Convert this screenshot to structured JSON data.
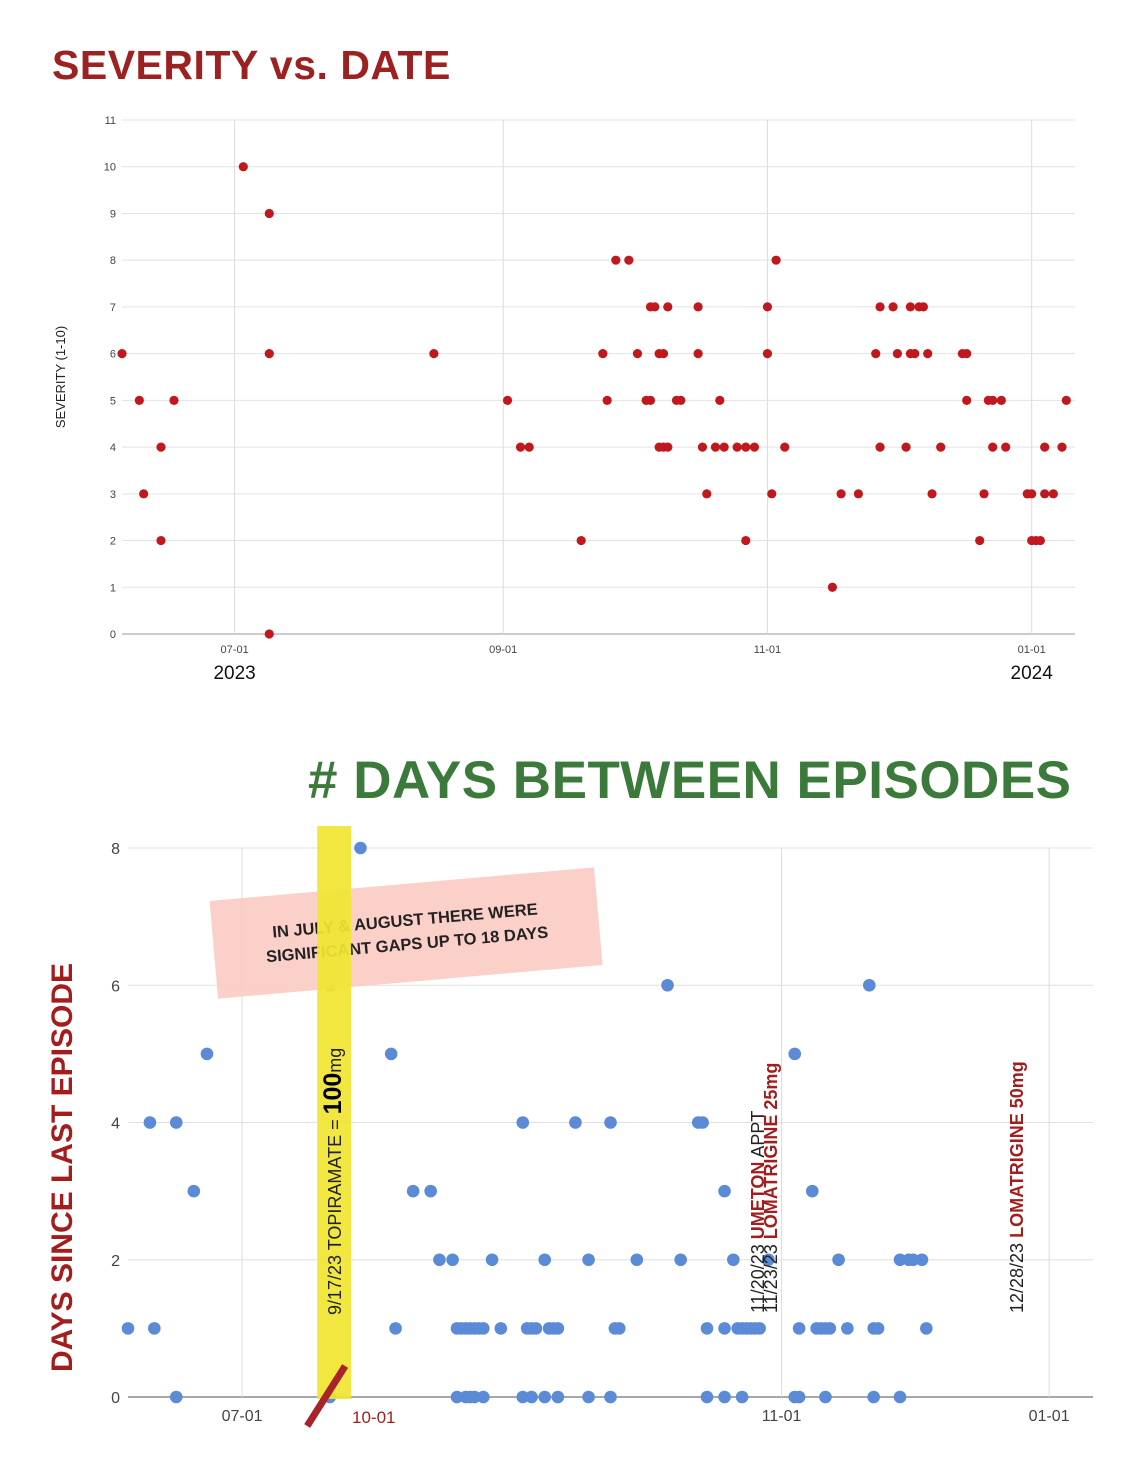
{
  "charts": {
    "severity": {
      "title": "SEVERITY vs. DATE"
    },
    "days": {
      "title": "# DAYS BETWEEN EPISODES"
    }
  },
  "chart_data": [
    {
      "type": "scatter",
      "title": "SEVERITY vs. DATE",
      "ylabel": "SEVERITY (1-10)",
      "xlabel": "",
      "ylim": [
        0,
        11
      ],
      "xlim": [
        "2023-06-05",
        "2024-01-11"
      ],
      "yticks": [
        "0",
        "1",
        "2",
        "3",
        "4",
        "5",
        "6",
        "7",
        "8",
        "9",
        "10",
        "11"
      ],
      "xticks": [
        {
          "date": "2023-07-01",
          "label": "07-01",
          "year": "2023"
        },
        {
          "date": "2023-09-01",
          "label": "09-01",
          "year": ""
        },
        {
          "date": "2023-11-01",
          "label": "11-01",
          "year": ""
        },
        {
          "date": "2024-01-01",
          "label": "01-01",
          "year": "2024"
        }
      ],
      "grid": true,
      "marker_color": "#c0181d",
      "points": [
        [
          "2023-06-05",
          6
        ],
        [
          "2023-06-09",
          5
        ],
        [
          "2023-06-10",
          3
        ],
        [
          "2023-06-14",
          2
        ],
        [
          "2023-06-14",
          4
        ],
        [
          "2023-06-17",
          5
        ],
        [
          "2023-07-03",
          10
        ],
        [
          "2023-07-09",
          9
        ],
        [
          "2023-07-09",
          6
        ],
        [
          "2023-07-09",
          0
        ],
        [
          "2023-08-16",
          6
        ],
        [
          "2023-09-02",
          5
        ],
        [
          "2023-09-05",
          4
        ],
        [
          "2023-09-07",
          4
        ],
        [
          "2023-09-19",
          2
        ],
        [
          "2023-09-24",
          6
        ],
        [
          "2023-09-25",
          5
        ],
        [
          "2023-09-27",
          8
        ],
        [
          "2023-09-30",
          8
        ],
        [
          "2023-10-02",
          6
        ],
        [
          "2023-10-04",
          5
        ],
        [
          "2023-10-05",
          5
        ],
        [
          "2023-10-05",
          7
        ],
        [
          "2023-10-06",
          7
        ],
        [
          "2023-10-07",
          6
        ],
        [
          "2023-10-07",
          4
        ],
        [
          "2023-10-08",
          6
        ],
        [
          "2023-10-08",
          4
        ],
        [
          "2023-10-09",
          4
        ],
        [
          "2023-10-09",
          7
        ],
        [
          "2023-10-11",
          5
        ],
        [
          "2023-10-12",
          5
        ],
        [
          "2023-10-16",
          7
        ],
        [
          "2023-10-16",
          6
        ],
        [
          "2023-10-17",
          4
        ],
        [
          "2023-10-18",
          3
        ],
        [
          "2023-10-20",
          4
        ],
        [
          "2023-10-21",
          5
        ],
        [
          "2023-10-22",
          4
        ],
        [
          "2023-10-25",
          4
        ],
        [
          "2023-10-27",
          4
        ],
        [
          "2023-10-27",
          2
        ],
        [
          "2023-10-29",
          4
        ],
        [
          "2023-11-01",
          6
        ],
        [
          "2023-11-01",
          7
        ],
        [
          "2023-11-02",
          3
        ],
        [
          "2023-11-03",
          8
        ],
        [
          "2023-11-05",
          4
        ],
        [
          "2023-11-16",
          1
        ],
        [
          "2023-11-18",
          3
        ],
        [
          "2023-11-22",
          3
        ],
        [
          "2023-11-26",
          6
        ],
        [
          "2023-11-27",
          7
        ],
        [
          "2023-11-27",
          4
        ],
        [
          "2023-11-30",
          7
        ],
        [
          "2023-12-01",
          6
        ],
        [
          "2023-12-03",
          4
        ],
        [
          "2023-12-04",
          7
        ],
        [
          "2023-12-04",
          6
        ],
        [
          "2023-12-05",
          6
        ],
        [
          "2023-12-06",
          7
        ],
        [
          "2023-12-07",
          7
        ],
        [
          "2023-12-08",
          6
        ],
        [
          "2023-12-09",
          3
        ],
        [
          "2023-12-11",
          4
        ],
        [
          "2023-12-16",
          6
        ],
        [
          "2023-12-17",
          6
        ],
        [
          "2023-12-17",
          5
        ],
        [
          "2023-12-20",
          2
        ],
        [
          "2023-12-21",
          3
        ],
        [
          "2023-12-22",
          5
        ],
        [
          "2023-12-23",
          5
        ],
        [
          "2023-12-23",
          4
        ],
        [
          "2023-12-25",
          5
        ],
        [
          "2023-12-26",
          4
        ],
        [
          "2023-12-31",
          3
        ],
        [
          "2023-12-31",
          3
        ],
        [
          "2024-01-01",
          3
        ],
        [
          "2024-01-01",
          2
        ],
        [
          "2024-01-02",
          2
        ],
        [
          "2024-01-03",
          2
        ],
        [
          "2024-01-04",
          4
        ],
        [
          "2024-01-04",
          3
        ],
        [
          "2024-01-06",
          3
        ],
        [
          "2024-01-08",
          4
        ],
        [
          "2024-01-09",
          5
        ]
      ]
    },
    {
      "type": "scatter",
      "title": "# DAYS BETWEEN EPISODES",
      "ylabel": "DAYS SINCE LAST EPISODE",
      "xlabel": "",
      "ylim": [
        0,
        8
      ],
      "xlim": [
        "2023-06-05",
        "2024-01-11"
      ],
      "yticks": [
        "0",
        "2",
        "4",
        "6",
        "8"
      ],
      "xticks": [
        {
          "date": "2023-07-01",
          "label": "07-01"
        },
        {
          "date": "2023-11-01",
          "label": "11-01"
        },
        {
          "date": "2024-01-01",
          "label": "01-01"
        }
      ],
      "extra_xlabel": {
        "date": "2023-07-21",
        "label": "10-01",
        "color": "#a31d1d"
      },
      "grid": true,
      "marker_color": "#5b8bd6",
      "points": [
        [
          "2023-06-05",
          1
        ],
        [
          "2023-06-10",
          4
        ],
        [
          "2023-06-11",
          1
        ],
        [
          "2023-06-16",
          4
        ],
        [
          "2023-06-16",
          0
        ],
        [
          "2023-06-20",
          3
        ],
        [
          "2023-06-23",
          5
        ],
        [
          "2023-07-21",
          6
        ],
        [
          "2023-07-21",
          0
        ],
        [
          "2023-07-28",
          8
        ],
        [
          "2023-08-04",
          5
        ],
        [
          "2023-08-05",
          1
        ],
        [
          "2023-08-09",
          3
        ],
        [
          "2023-08-13",
          3
        ],
        [
          "2023-08-15",
          2
        ],
        [
          "2023-08-18",
          2
        ],
        [
          "2023-08-19",
          1
        ],
        [
          "2023-08-19",
          0
        ],
        [
          "2023-08-20",
          1
        ],
        [
          "2023-08-21",
          1
        ],
        [
          "2023-08-21",
          0
        ],
        [
          "2023-08-22",
          1
        ],
        [
          "2023-08-22",
          0
        ],
        [
          "2023-08-23",
          1
        ],
        [
          "2023-08-23",
          0
        ],
        [
          "2023-08-24",
          1
        ],
        [
          "2023-08-25",
          1
        ],
        [
          "2023-08-25",
          0
        ],
        [
          "2023-08-27",
          2
        ],
        [
          "2023-08-29",
          1
        ],
        [
          "2023-09-03",
          4
        ],
        [
          "2023-09-03",
          0
        ],
        [
          "2023-09-04",
          1
        ],
        [
          "2023-09-05",
          1
        ],
        [
          "2023-09-05",
          0
        ],
        [
          "2023-09-06",
          1
        ],
        [
          "2023-09-08",
          2
        ],
        [
          "2023-09-08",
          0
        ],
        [
          "2023-09-09",
          1
        ],
        [
          "2023-09-10",
          1
        ],
        [
          "2023-09-11",
          1
        ],
        [
          "2023-09-11",
          0
        ],
        [
          "2023-09-15",
          4
        ],
        [
          "2023-09-18",
          2
        ],
        [
          "2023-09-18",
          0
        ],
        [
          "2023-09-23",
          4
        ],
        [
          "2023-09-23",
          0
        ],
        [
          "2023-09-24",
          1
        ],
        [
          "2023-09-25",
          1
        ],
        [
          "2023-09-29",
          2
        ],
        [
          "2023-10-06",
          6
        ],
        [
          "2023-10-09",
          2
        ],
        [
          "2023-10-13",
          4
        ],
        [
          "2023-10-14",
          4
        ],
        [
          "2023-10-15",
          1
        ],
        [
          "2023-10-15",
          0
        ],
        [
          "2023-10-19",
          3
        ],
        [
          "2023-10-19",
          1
        ],
        [
          "2023-10-19",
          0
        ],
        [
          "2023-10-21",
          2
        ],
        [
          "2023-10-22",
          1
        ],
        [
          "2023-10-23",
          1
        ],
        [
          "2023-10-23",
          0
        ],
        [
          "2023-10-24",
          1
        ],
        [
          "2023-10-25",
          1
        ],
        [
          "2023-10-26",
          1
        ],
        [
          "2023-10-27",
          1
        ],
        [
          "2023-10-29",
          2
        ],
        [
          "2023-11-04",
          5
        ],
        [
          "2023-11-04",
          0
        ],
        [
          "2023-11-05",
          1
        ],
        [
          "2023-11-05",
          0
        ],
        [
          "2023-11-08",
          3
        ],
        [
          "2023-11-09",
          1
        ],
        [
          "2023-11-10",
          1
        ],
        [
          "2023-11-11",
          1
        ],
        [
          "2023-11-11",
          0
        ],
        [
          "2023-11-12",
          1
        ],
        [
          "2023-11-14",
          2
        ],
        [
          "2023-11-16",
          1
        ],
        [
          "2023-11-21",
          6
        ],
        [
          "2023-11-22",
          1
        ],
        [
          "2023-11-22",
          0
        ],
        [
          "2023-11-23",
          1
        ],
        [
          "2023-11-28",
          2
        ],
        [
          "2023-11-28",
          0
        ],
        [
          "2023-11-30",
          2
        ],
        [
          "2023-12-01",
          2
        ],
        [
          "2023-12-03",
          2
        ],
        [
          "2023-12-04",
          1
        ]
      ],
      "annotations": [
        {
          "kind": "note",
          "lines": [
            "IN JULY & AUGUST THERE WERE",
            "SIGNIFICANT GAPS UP TO 18 DAYS"
          ]
        },
        {
          "kind": "band",
          "date": "2023-07-22",
          "prefix": "9/17/23  TOPIRAMATE = ",
          "bold": "100",
          "suffix": "mg"
        },
        {
          "kind": "vtext",
          "date": "2023-10-28",
          "plain": "11/20/23  ",
          "bold": "UMETON",
          "suffix": " APPT",
          "bold_color": "#a31d1d",
          "color": "#222222"
        },
        {
          "kind": "vtext",
          "date": "2023-10-31",
          "plain": "11/23/23  ",
          "bold": "LOMATRIGINE 25mg",
          "suffix": "",
          "bold_color": "#a31d1d",
          "color": "#222222"
        },
        {
          "kind": "vtext",
          "date": "2023-12-26",
          "plain": "12/28/23  ",
          "bold": "LOMATRIGINE 50mg",
          "suffix": "",
          "bold_color": "#a31d1d",
          "color": "#222222"
        }
      ]
    }
  ]
}
